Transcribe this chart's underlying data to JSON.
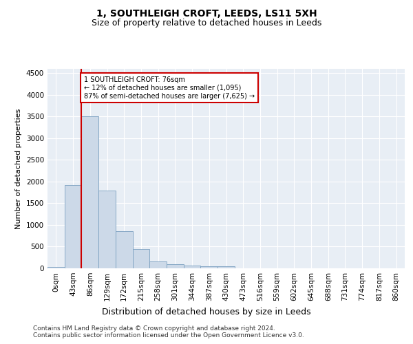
{
  "title": "1, SOUTHLEIGH CROFT, LEEDS, LS11 5XH",
  "subtitle": "Size of property relative to detached houses in Leeds",
  "xlabel": "Distribution of detached houses by size in Leeds",
  "ylabel": "Number of detached properties",
  "bar_labels": [
    "0sqm",
    "43sqm",
    "86sqm",
    "129sqm",
    "172sqm",
    "215sqm",
    "258sqm",
    "301sqm",
    "344sqm",
    "387sqm",
    "430sqm",
    "473sqm",
    "516sqm",
    "559sqm",
    "602sqm",
    "645sqm",
    "688sqm",
    "731sqm",
    "774sqm",
    "817sqm",
    "860sqm"
  ],
  "bar_values": [
    30,
    1920,
    3500,
    1800,
    850,
    450,
    160,
    100,
    70,
    55,
    45,
    5,
    0,
    0,
    0,
    0,
    0,
    0,
    0,
    0,
    0
  ],
  "bar_color": "#ccd9e8",
  "bar_edge_color": "#7ba0c0",
  "vline_x": 2,
  "annotation_text": "1 SOUTHLEIGH CROFT: 76sqm\n← 12% of detached houses are smaller (1,095)\n87% of semi-detached houses are larger (7,625) →",
  "annotation_box_facecolor": "white",
  "annotation_box_edgecolor": "#cc0000",
  "vline_color": "#cc0000",
  "ylim": [
    0,
    4600
  ],
  "yticks": [
    0,
    500,
    1000,
    1500,
    2000,
    2500,
    3000,
    3500,
    4000,
    4500
  ],
  "plot_bg_color": "#e8eef5",
  "footer_line1": "Contains HM Land Registry data © Crown copyright and database right 2024.",
  "footer_line2": "Contains public sector information licensed under the Open Government Licence v3.0.",
  "title_fontsize": 10,
  "subtitle_fontsize": 9,
  "ylabel_fontsize": 8,
  "xlabel_fontsize": 9,
  "tick_fontsize": 7.5,
  "annotation_fontsize": 7,
  "footer_fontsize": 6.5
}
